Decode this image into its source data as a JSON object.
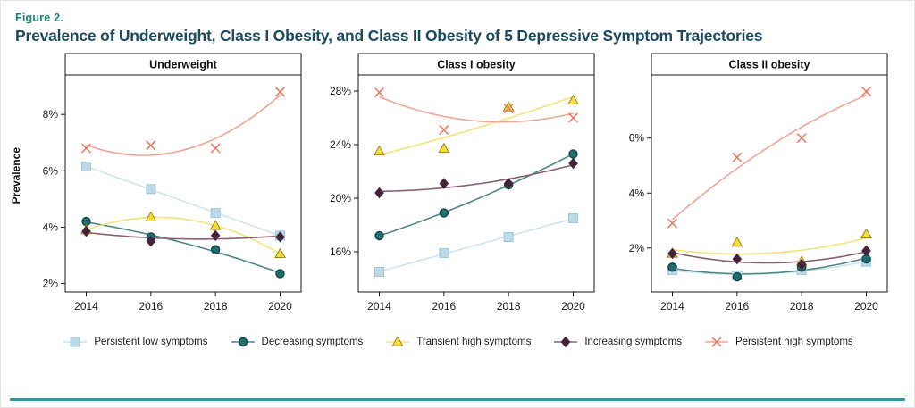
{
  "header": {
    "figure_label": "Figure 2.",
    "title": "Prevalence of Underweight, Class I Obesity, and Class II Obesity of 5 Depressive Symptom Trajectories"
  },
  "y_axis_label": "Prevalence",
  "colors": {
    "figure_label": "#1e7f7b",
    "title": "#1b4a5f",
    "rule": "#2d99a1",
    "axis": "#1a1a1a"
  },
  "series_styles": {
    "persistent_low": {
      "marker": "square",
      "fill": "#bcd9e8",
      "edge": "#9fc7da",
      "line": "#cfe3ee"
    },
    "decreasing": {
      "marker": "circle",
      "fill": "#1d6e6c",
      "edge": "#10403f",
      "line": "#4e8886"
    },
    "transient_high": {
      "marker": "triangle",
      "fill": "#f6de39",
      "edge": "#94790a",
      "line": "#f3e27a"
    },
    "increasing": {
      "marker": "diamond",
      "fill": "#45233a",
      "edge": "#45233a",
      "line": "#8a5f74"
    },
    "persistent_high": {
      "marker": "x",
      "fill": "#e5755f",
      "edge": "#e5755f",
      "line": "#f0a493"
    }
  },
  "legend": [
    {
      "key": "persistent_low",
      "label": "Persistent low symptoms"
    },
    {
      "key": "decreasing",
      "label": "Decreasing symptoms"
    },
    {
      "key": "transient_high",
      "label": "Transient high symptoms"
    },
    {
      "key": "increasing",
      "label": "Increasing symptoms"
    },
    {
      "key": "persistent_high",
      "label": "Persistent high symptoms"
    }
  ],
  "chart_data": [
    {
      "type": "scatter",
      "title": "Underweight",
      "x": [
        2014,
        2016,
        2018,
        2020
      ],
      "xlabel": "",
      "ylabel": "Prevalence",
      "ylim": [
        1.7,
        9.4
      ],
      "yticks": [
        2,
        4,
        6,
        8
      ],
      "ytick_suffix": "%",
      "fit": "quadratic",
      "series": [
        {
          "key": "persistent_low",
          "name": "Persistent low symptoms",
          "values": [
            6.15,
            5.35,
            4.5,
            3.7
          ]
        },
        {
          "key": "decreasing",
          "name": "Decreasing symptoms",
          "values": [
            4.2,
            3.65,
            3.2,
            2.35
          ]
        },
        {
          "key": "transient_high",
          "name": "Transient high symptoms",
          "values": [
            3.9,
            4.35,
            4.05,
            3.05
          ]
        },
        {
          "key": "increasing",
          "name": "Increasing symptoms",
          "values": [
            3.85,
            3.5,
            3.7,
            3.65
          ]
        },
        {
          "key": "persistent_high",
          "name": "Persistent high symptoms",
          "values": [
            6.8,
            6.9,
            6.8,
            8.8
          ]
        }
      ]
    },
    {
      "type": "scatter",
      "title": "Class I obesity",
      "x": [
        2014,
        2016,
        2018,
        2020
      ],
      "xlabel": "",
      "ylabel": "Prevalence",
      "ylim": [
        13.0,
        29.2
      ],
      "yticks": [
        16,
        20,
        24,
        28
      ],
      "ytick_suffix": "%",
      "fit": "quadratic",
      "series": [
        {
          "key": "persistent_low",
          "name": "Persistent low symptoms",
          "values": [
            14.5,
            15.9,
            17.1,
            18.5
          ]
        },
        {
          "key": "decreasing",
          "name": "Decreasing symptoms",
          "values": [
            17.2,
            18.9,
            21.0,
            23.3
          ]
        },
        {
          "key": "transient_high",
          "name": "Transient high symptoms",
          "values": [
            23.5,
            23.7,
            26.8,
            27.3
          ]
        },
        {
          "key": "increasing",
          "name": "Increasing symptoms",
          "values": [
            20.4,
            21.1,
            21.1,
            22.6
          ]
        },
        {
          "key": "persistent_high",
          "name": "Persistent high symptoms",
          "values": [
            27.9,
            25.1,
            26.7,
            26.0
          ]
        }
      ]
    },
    {
      "type": "scatter",
      "title": "Class II obesity",
      "x": [
        2014,
        2016,
        2018,
        2020
      ],
      "xlabel": "",
      "ylabel": "Prevalence",
      "ylim": [
        0.4,
        8.3
      ],
      "yticks": [
        2,
        4,
        6
      ],
      "ytick_suffix": "%",
      "fit": "quadratic",
      "series": [
        {
          "key": "persistent_low",
          "name": "Persistent low symptoms",
          "values": [
            1.2,
            1.0,
            1.2,
            1.5
          ]
        },
        {
          "key": "decreasing",
          "name": "Decreasing symptoms",
          "values": [
            1.3,
            0.95,
            1.3,
            1.6
          ]
        },
        {
          "key": "transient_high",
          "name": "Transient high symptoms",
          "values": [
            1.8,
            2.2,
            1.5,
            2.5
          ]
        },
        {
          "key": "increasing",
          "name": "Increasing symptoms",
          "values": [
            1.8,
            1.6,
            1.4,
            1.9
          ]
        },
        {
          "key": "persistent_high",
          "name": "Persistent high symptoms",
          "values": [
            2.9,
            5.3,
            6.0,
            7.7
          ]
        }
      ]
    }
  ]
}
